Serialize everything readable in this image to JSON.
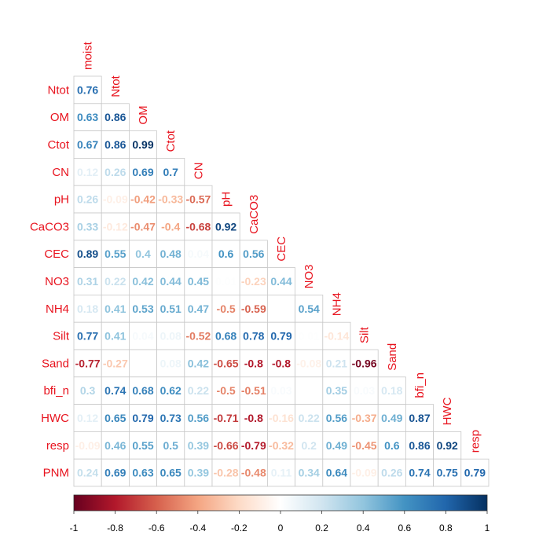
{
  "chart_data": {
    "type": "heatmap",
    "layout": "lower-triangle correlation matrix",
    "variables": [
      "moist",
      "Ntot",
      "OM",
      "Ctot",
      "CN",
      "pH",
      "CaCO3",
      "CEC",
      "NO3",
      "NH4",
      "Silt",
      "Sand",
      "bfi_n",
      "HWC",
      "resp",
      "PNM"
    ],
    "row_labels": [
      "Ntot",
      "OM",
      "Ctot",
      "CN",
      "pH",
      "CaCO3",
      "CEC",
      "NO3",
      "NH4",
      "Silt",
      "Sand",
      "bfi_n",
      "HWC",
      "resp",
      "PNM"
    ],
    "column_labels": [
      "moist",
      "Ntot",
      "OM",
      "Ctot",
      "CN",
      "pH",
      "CaCO3",
      "CEC",
      "NO3",
      "NH4",
      "Silt",
      "Sand",
      "bfi_n",
      "HWC",
      "resp"
    ],
    "values": [
      [
        0.76
      ],
      [
        0.63,
        0.86
      ],
      [
        0.67,
        0.86,
        0.99
      ],
      [
        0.12,
        0.26,
        0.69,
        0.7
      ],
      [
        0.26,
        -0.09,
        -0.42,
        -0.33,
        -0.57
      ],
      [
        0.33,
        -0.12,
        -0.47,
        -0.4,
        -0.68,
        0.92
      ],
      [
        0.89,
        0.55,
        0.4,
        0.48,
        0.04,
        0.6,
        0.56
      ],
      [
        0.31,
        0.22,
        0.42,
        0.44,
        0.45,
        0.01,
        -0.23,
        0.44
      ],
      [
        0.18,
        0.41,
        0.53,
        0.51,
        0.47,
        -0.5,
        -0.59,
        0,
        0.54
      ],
      [
        0.77,
        0.41,
        0.04,
        0.08,
        -0.52,
        0.68,
        0.78,
        0.79,
        0.01,
        -0.14
      ],
      [
        -0.77,
        -0.27,
        0,
        0.08,
        0.42,
        -0.65,
        -0.8,
        -0.8,
        -0.08,
        0.21,
        -0.96
      ],
      [
        0.3,
        0.74,
        0.68,
        0.62,
        0.22,
        -0.5,
        -0.51,
        0.03,
        0,
        0.35,
        0.03,
        0.18
      ],
      [
        0.12,
        0.65,
        0.79,
        0.73,
        0.56,
        -0.71,
        -0.8,
        -0.16,
        0.22,
        0.56,
        -0.37,
        0.49,
        0.87
      ],
      [
        -0.09,
        0.46,
        0.55,
        0.5,
        0.39,
        -0.66,
        -0.79,
        -0.32,
        0.2,
        0.49,
        -0.45,
        0.6,
        0.86,
        0.92
      ],
      [
        0.24,
        0.69,
        0.63,
        0.65,
        0.39,
        -0.28,
        -0.48,
        0.11,
        0.34,
        0.64,
        -0.09,
        0.26,
        0.74,
        0.75,
        0.79
      ]
    ],
    "colorbar": {
      "ticks": [
        "-1",
        "-0.8",
        "-0.6",
        "-0.4",
        "-0.2",
        "0",
        "0.2",
        "0.4",
        "0.6",
        "0.8",
        "1"
      ],
      "range": [
        -1,
        1
      ],
      "colors": [
        "#67001F",
        "#B2182B",
        "#D6604D",
        "#F4A582",
        "#FDDBC7",
        "#FFFFFF",
        "#D1E5F0",
        "#92C5DE",
        "#4393C3",
        "#2166AC",
        "#053061"
      ]
    },
    "label_color": "#e8141f",
    "grid": true
  }
}
